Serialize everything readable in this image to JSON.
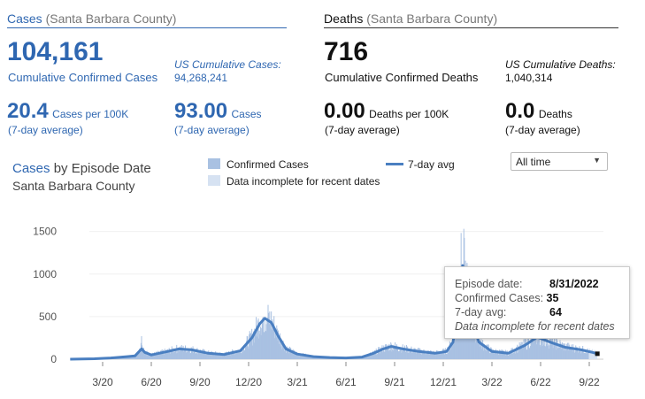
{
  "colors": {
    "accent": "#2f67b1",
    "bar": "#a9c1e2",
    "line": "#4a7fc1",
    "incomplete": "#d6e2f2"
  },
  "cases": {
    "header_main": "Cases",
    "header_sub": "(Santa Barbara County)",
    "total": "104,161",
    "total_label": "Cumulative Confirmed Cases",
    "us_label": "US Cumulative Cases:",
    "us_value": "94,268,241",
    "per100k_value": "20.4",
    "per100k_label": "Cases per 100K",
    "per100k_note": "(7-day average)",
    "avg_value": "93.00",
    "avg_label": "Cases",
    "avg_note": "(7-day average)"
  },
  "deaths": {
    "header_main": "Deaths",
    "header_sub": "(Santa Barbara County)",
    "total": "716",
    "total_label": "Cumulative Confirmed Deaths",
    "us_label": "US Cumulative Deaths:",
    "us_value": "1,040,314",
    "per100k_value": "0.00",
    "per100k_label": "Deaths per 100K",
    "per100k_note": "(7-day average)",
    "avg_value": "0.0",
    "avg_label": "Deaths",
    "avg_note": "(7-day average)"
  },
  "chart_header": {
    "title_main": "Cases",
    "title_rest": "by Episode Date",
    "subtitle": "Santa Barbara County"
  },
  "legend": {
    "confirmed": "Confirmed Cases",
    "incomplete": "Data incomplete for recent dates",
    "avg": "7-day avg"
  },
  "range_select": {
    "value": "All time"
  },
  "tooltip": {
    "date_label": "Episode date:",
    "date_value": "8/31/2022",
    "cases_label": "Confirmed Cases:",
    "cases_value": "35",
    "avg_label": "7-day avg:",
    "avg_value": "64",
    "note": "Data incomplete for recent dates"
  },
  "chart_data": {
    "type": "bar",
    "title": "Cases by Episode Date",
    "subtitle": "Santa Barbara County",
    "xlabel": "",
    "ylabel": "",
    "ylim": [
      0,
      1600
    ],
    "yticks": [
      0,
      500,
      1000,
      1500
    ],
    "x_range_months": [
      0,
      33
    ],
    "x_ticks": [
      {
        "m": 2,
        "label": "3/20"
      },
      {
        "m": 5,
        "label": "6/20"
      },
      {
        "m": 8,
        "label": "9/20"
      },
      {
        "m": 11,
        "label": "12/20"
      },
      {
        "m": 14,
        "label": "3/21"
      },
      {
        "m": 17,
        "label": "6/21"
      },
      {
        "m": 20,
        "label": "9/21"
      },
      {
        "m": 23,
        "label": "12/21"
      },
      {
        "m": 26,
        "label": "3/22"
      },
      {
        "m": 29,
        "label": "6/22"
      },
      {
        "m": 32,
        "label": "9/22"
      }
    ],
    "series": [
      {
        "name": "7-day avg",
        "type": "line",
        "points": [
          [
            0,
            0
          ],
          [
            1.5,
            5
          ],
          [
            2.5,
            15
          ],
          [
            3.5,
            30
          ],
          [
            4.0,
            40
          ],
          [
            4.4,
            120
          ],
          [
            4.6,
            80
          ],
          [
            5.0,
            50
          ],
          [
            6.0,
            90
          ],
          [
            6.7,
            120
          ],
          [
            7.5,
            110
          ],
          [
            8.5,
            70
          ],
          [
            9.5,
            55
          ],
          [
            10.5,
            100
          ],
          [
            11.2,
            250
          ],
          [
            11.7,
            420
          ],
          [
            12.0,
            480
          ],
          [
            12.4,
            430
          ],
          [
            12.8,
            280
          ],
          [
            13.3,
            120
          ],
          [
            14.0,
            60
          ],
          [
            15.0,
            30
          ],
          [
            16.0,
            20
          ],
          [
            17.0,
            15
          ],
          [
            18.0,
            25
          ],
          [
            18.7,
            70
          ],
          [
            19.3,
            120
          ],
          [
            19.8,
            150
          ],
          [
            20.5,
            120
          ],
          [
            21.5,
            90
          ],
          [
            22.5,
            70
          ],
          [
            23.2,
            90
          ],
          [
            23.6,
            200
          ],
          [
            24.0,
            700
          ],
          [
            24.2,
            1100
          ],
          [
            24.4,
            900
          ],
          [
            24.7,
            500
          ],
          [
            25.2,
            200
          ],
          [
            26.0,
            90
          ],
          [
            27.0,
            70
          ],
          [
            28.0,
            160
          ],
          [
            28.8,
            260
          ],
          [
            29.6,
            200
          ],
          [
            30.5,
            140
          ],
          [
            31.5,
            110
          ],
          [
            32.2,
            80
          ],
          [
            32.5,
            64
          ]
        ]
      },
      {
        "name": "Confirmed Cases",
        "type": "bar",
        "note": "daily bars follow 7-day avg with peaks near 550 (Jan 2021) and 1500 (Jan 2022)",
        "peaks": [
          {
            "m": 4.4,
            "value": 320
          },
          {
            "m": 12.0,
            "value": 560
          },
          {
            "m": 24.1,
            "value": 1500
          },
          {
            "m": 28.9,
            "value": 420
          }
        ]
      },
      {
        "name": "Data incomplete for recent dates",
        "type": "bar",
        "range_months": [
          32.0,
          32.5
        ]
      }
    ],
    "highlight": {
      "date": "8/31/2022",
      "confirmed_cases": 35,
      "avg": 64
    }
  }
}
